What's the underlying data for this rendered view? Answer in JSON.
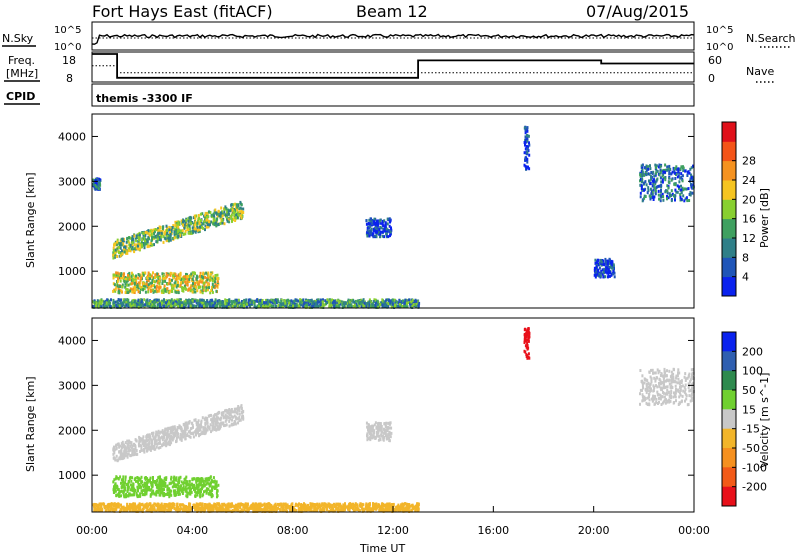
{
  "header": {
    "radar": "Fort Hays East (fitACF)",
    "beam": "Beam 12",
    "date": "07/Aug/2015"
  },
  "colors": {
    "axis": "#000000",
    "text": "#000000",
    "background": "#ffffff"
  },
  "chart_data": [
    {
      "type": "line",
      "panel": "noise",
      "left_label": "N.Sky",
      "right_label": "N.Search",
      "y_ticks_left": [
        "10^5",
        "10^0"
      ],
      "y_ticks_right": [
        "10^5",
        "10^0"
      ],
      "series": [
        {
          "name": "N.Sky",
          "style": "solid"
        },
        {
          "name": "N.Search",
          "style": "dotted"
        }
      ]
    },
    {
      "type": "line",
      "panel": "frequency",
      "left_label_1": "Freq.",
      "left_label_2": "[MHz]",
      "right_label": "Nave",
      "y_ticks_left": [
        "18",
        "8"
      ],
      "y_ticks_right": [
        "60",
        "0"
      ],
      "freq_ylim": [
        8,
        18
      ],
      "nave_ylim": [
        0,
        60
      ],
      "freq_steps": [
        {
          "x0": 0.0,
          "x1": 1.0,
          "v": 18
        },
        {
          "x0": 1.0,
          "x1": 13.0,
          "v": 9.5
        },
        {
          "x0": 13.0,
          "x1": 20.3,
          "v": 15.7
        },
        {
          "x0": 20.3,
          "x1": 24.0,
          "v": 14.6
        }
      ],
      "nave": [
        {
          "x0": 0.0,
          "x1": 1.0,
          "v": 35
        },
        {
          "x0": 1.0,
          "x1": 24.0,
          "v": 20
        }
      ]
    },
    {
      "type": "text",
      "panel": "cpid",
      "label": "CPID",
      "value": "themis -3300 IF"
    },
    {
      "type": "heatmap",
      "panel": "power",
      "ylabel": "Slant Range [km]",
      "ylim": [
        180,
        4500
      ],
      "y_ticks": [
        1000,
        2000,
        3000,
        4000
      ],
      "colorbar_label": "Power [dB]",
      "colorbar_ticks": [
        "4",
        "8",
        "12",
        "16",
        "20",
        "24",
        "28"
      ],
      "colorbar_colors": [
        "#0a22ee",
        "#1f55b8",
        "#2f7f88",
        "#3fa060",
        "#88cf30",
        "#f5c420",
        "#f59220",
        "#f45418",
        "#e0101a"
      ],
      "regions": [
        {
          "t0": 0.0,
          "t1": 0.3,
          "r0": 2850,
          "r1": 3100,
          "level": 2
        },
        {
          "t0": 0.8,
          "t1": 6.0,
          "r0": 1300,
          "r1": 2700,
          "level": 4,
          "shape": "rising-arc"
        },
        {
          "t0": 0.8,
          "t1": 5.0,
          "r0": 550,
          "r1": 1000,
          "level": 5
        },
        {
          "t0": 0.0,
          "t1": 13.0,
          "r0": 180,
          "r1": 400,
          "level": 3
        },
        {
          "t0": 10.9,
          "t1": 11.9,
          "r0": 1800,
          "r1": 2200,
          "level": 1
        },
        {
          "t0": 17.2,
          "t1": 17.4,
          "r0": 3300,
          "r1": 4300,
          "level": 1
        },
        {
          "t0": 20.0,
          "t1": 20.8,
          "r0": 900,
          "r1": 1300,
          "level": 1
        },
        {
          "t0": 21.8,
          "t1": 24.0,
          "r0": 2600,
          "r1": 3400,
          "level": 2
        }
      ]
    },
    {
      "type": "heatmap",
      "panel": "velocity",
      "ylabel": "Slant Range [km]",
      "xlabel": "Time UT",
      "xlim": [
        0,
        24
      ],
      "x_ticks": [
        "00:00",
        "04:00",
        "08:00",
        "12:00",
        "16:00",
        "20:00",
        "00:00"
      ],
      "ylim": [
        180,
        4500
      ],
      "y_ticks": [
        1000,
        2000,
        3000,
        4000
      ],
      "colorbar_label": "Velocity [m s^-1]",
      "colorbar_ticks": [
        "200",
        "100",
        "50",
        "15",
        "-15",
        "-50",
        "-100",
        "-200"
      ],
      "colorbar_colors": [
        "#0a22ee",
        "#2f5fb0",
        "#2e8a4e",
        "#70d030",
        "#c8c8c8",
        "#f2b52a",
        "#f5901f",
        "#f25a18",
        "#e8101a"
      ],
      "regions": [
        {
          "t0": 0.8,
          "t1": 6.0,
          "r0": 1300,
          "r1": 2700,
          "color": "#c8c8c8",
          "shape": "rising-arc"
        },
        {
          "t0": 0.8,
          "t1": 5.0,
          "r0": 550,
          "r1": 1000,
          "color": "#70d030"
        },
        {
          "t0": 0.0,
          "t1": 13.0,
          "r0": 180,
          "r1": 400,
          "color": "#f2b52a"
        },
        {
          "t0": 10.9,
          "t1": 11.9,
          "r0": 1800,
          "r1": 2200,
          "color": "#c8c8c8"
        },
        {
          "t0": 21.8,
          "t1": 24.0,
          "r0": 2600,
          "r1": 3400,
          "color": "#c8c8c8"
        },
        {
          "t0": 17.2,
          "t1": 17.4,
          "r0": 3600,
          "r1": 4300,
          "color": "#e8101a"
        }
      ]
    }
  ]
}
